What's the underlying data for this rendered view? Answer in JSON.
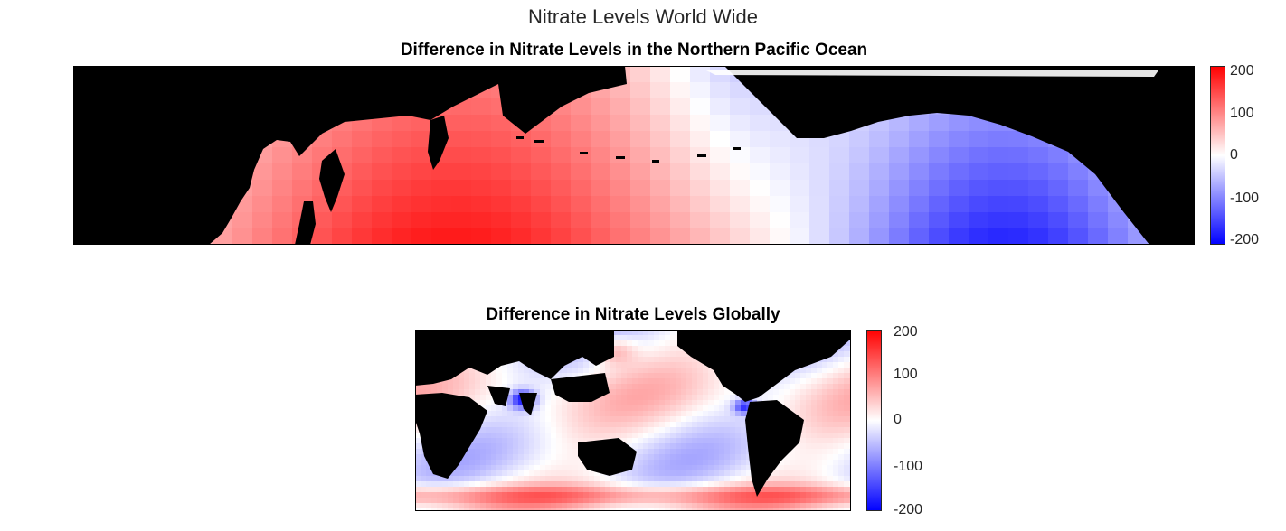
{
  "figure": {
    "title": "Nitrate Levels World Wide"
  },
  "chart_data": [
    {
      "type": "heatmap",
      "title": "Difference in Nitrate Levels in the Northern Pacific Ocean",
      "xlabel": "",
      "ylabel": "",
      "region": "Northern Pacific Ocean",
      "colormap": {
        "low": "#0000ff",
        "mid": "#ffffff",
        "high": "#ff0000",
        "land": "#000000"
      },
      "clim": [
        -200,
        200
      ],
      "colorbar": {
        "ticks": [
          "200",
          "100",
          "0",
          "-100",
          "-200"
        ]
      },
      "grid": false
    },
    {
      "type": "heatmap",
      "title": "Difference in Nitrate Levels Globally",
      "xlabel": "",
      "ylabel": "",
      "region": "Global",
      "colormap": {
        "low": "#0000ff",
        "mid": "#ffffff",
        "high": "#ff0000",
        "land": "#000000"
      },
      "clim": [
        -200,
        200
      ],
      "colorbar": {
        "ticks": [
          "200",
          "100",
          "0",
          "-100",
          "-200"
        ]
      },
      "grid": false
    }
  ]
}
